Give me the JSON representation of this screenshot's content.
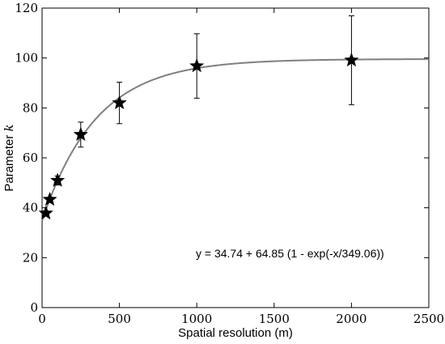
{
  "chart_data": {
    "type": "scatter",
    "xlabel": "Spatial resolution (m)",
    "ylabel": "Parameter",
    "ylabel_symbol": "k",
    "xlim": [
      0,
      2500
    ],
    "ylim": [
      0,
      120
    ],
    "xticks": [
      0,
      500,
      1000,
      1500,
      2000,
      2500
    ],
    "yticks": [
      0,
      20,
      40,
      60,
      80,
      100,
      120
    ],
    "grid": false,
    "legend": "none",
    "marker": "star",
    "points": [
      {
        "x": 25,
        "y": 37.8,
        "err": 0
      },
      {
        "x": 50,
        "y": 43.3,
        "err": 0
      },
      {
        "x": 100,
        "y": 50.9,
        "err": 1.8
      },
      {
        "x": 250,
        "y": 69.3,
        "err": 5.0
      },
      {
        "x": 500,
        "y": 82.0,
        "err": 8.3
      },
      {
        "x": 1000,
        "y": 96.8,
        "err": 12.9
      },
      {
        "x": 2000,
        "y": 99.1,
        "err": 17.8
      }
    ],
    "fit": {
      "a": 34.74,
      "b": 64.85,
      "tau": 349.06,
      "color": "#7f7f7f",
      "label": "y = 34.74 + 64.85 (1 - exp(-x/349.06))"
    }
  }
}
